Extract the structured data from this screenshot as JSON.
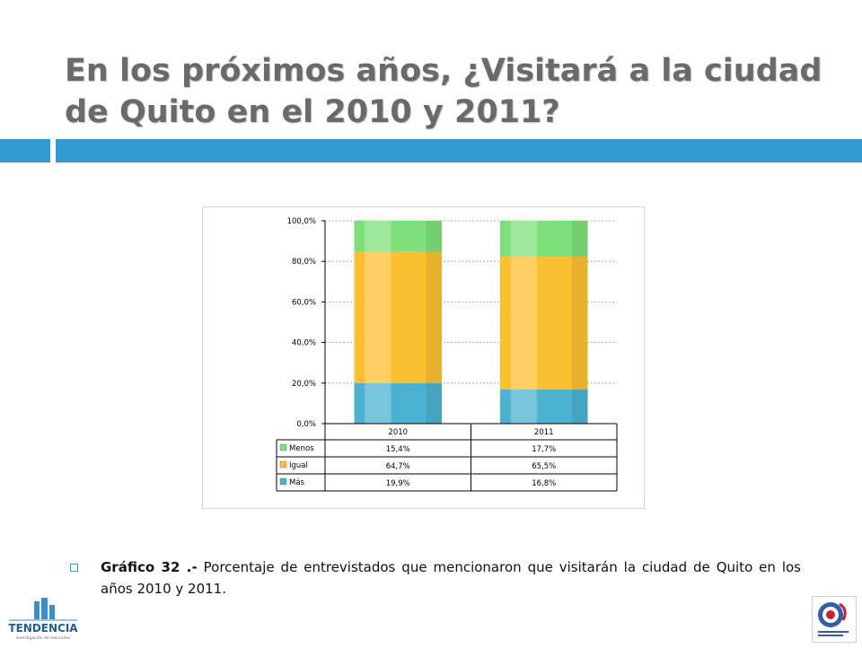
{
  "title": "En los próximos años, ¿Visitará a la ciudad de Quito en el 2010 y 2011?",
  "caption": {
    "label": "Gráfico 32 .-",
    "text": "Porcentaje de entrevistados que mencionaron que visitarán la ciudad de Quito en los años 2010 y 2011."
  },
  "logos": {
    "left_name": "TENDENCIA",
    "left_sub": "investigación de mercados"
  },
  "chart_data": {
    "type": "bar",
    "stacked": true,
    "percent": true,
    "categories": [
      "2010",
      "2011"
    ],
    "series": [
      {
        "name": "Más",
        "values": [
          19.9,
          16.8
        ],
        "labels": [
          "19,9%",
          "16,8%"
        ],
        "color": "#4bb3d1"
      },
      {
        "name": "Igual",
        "values": [
          64.7,
          65.5
        ],
        "labels": [
          "64,7%",
          "65,5%"
        ],
        "color": "#fbc032"
      },
      {
        "name": "Menos",
        "values": [
          15.4,
          17.7
        ],
        "labels": [
          "15,4%",
          "17,7%"
        ],
        "color": "#7ee07a"
      }
    ],
    "table_order": [
      "Menos",
      "Igual",
      "Más"
    ],
    "yticks": [
      "0,0%",
      "20,0%",
      "40,0%",
      "60,0%",
      "80,0%",
      "100,0%"
    ],
    "ylim": [
      0,
      100
    ],
    "grid": true,
    "legend": "data-table"
  }
}
